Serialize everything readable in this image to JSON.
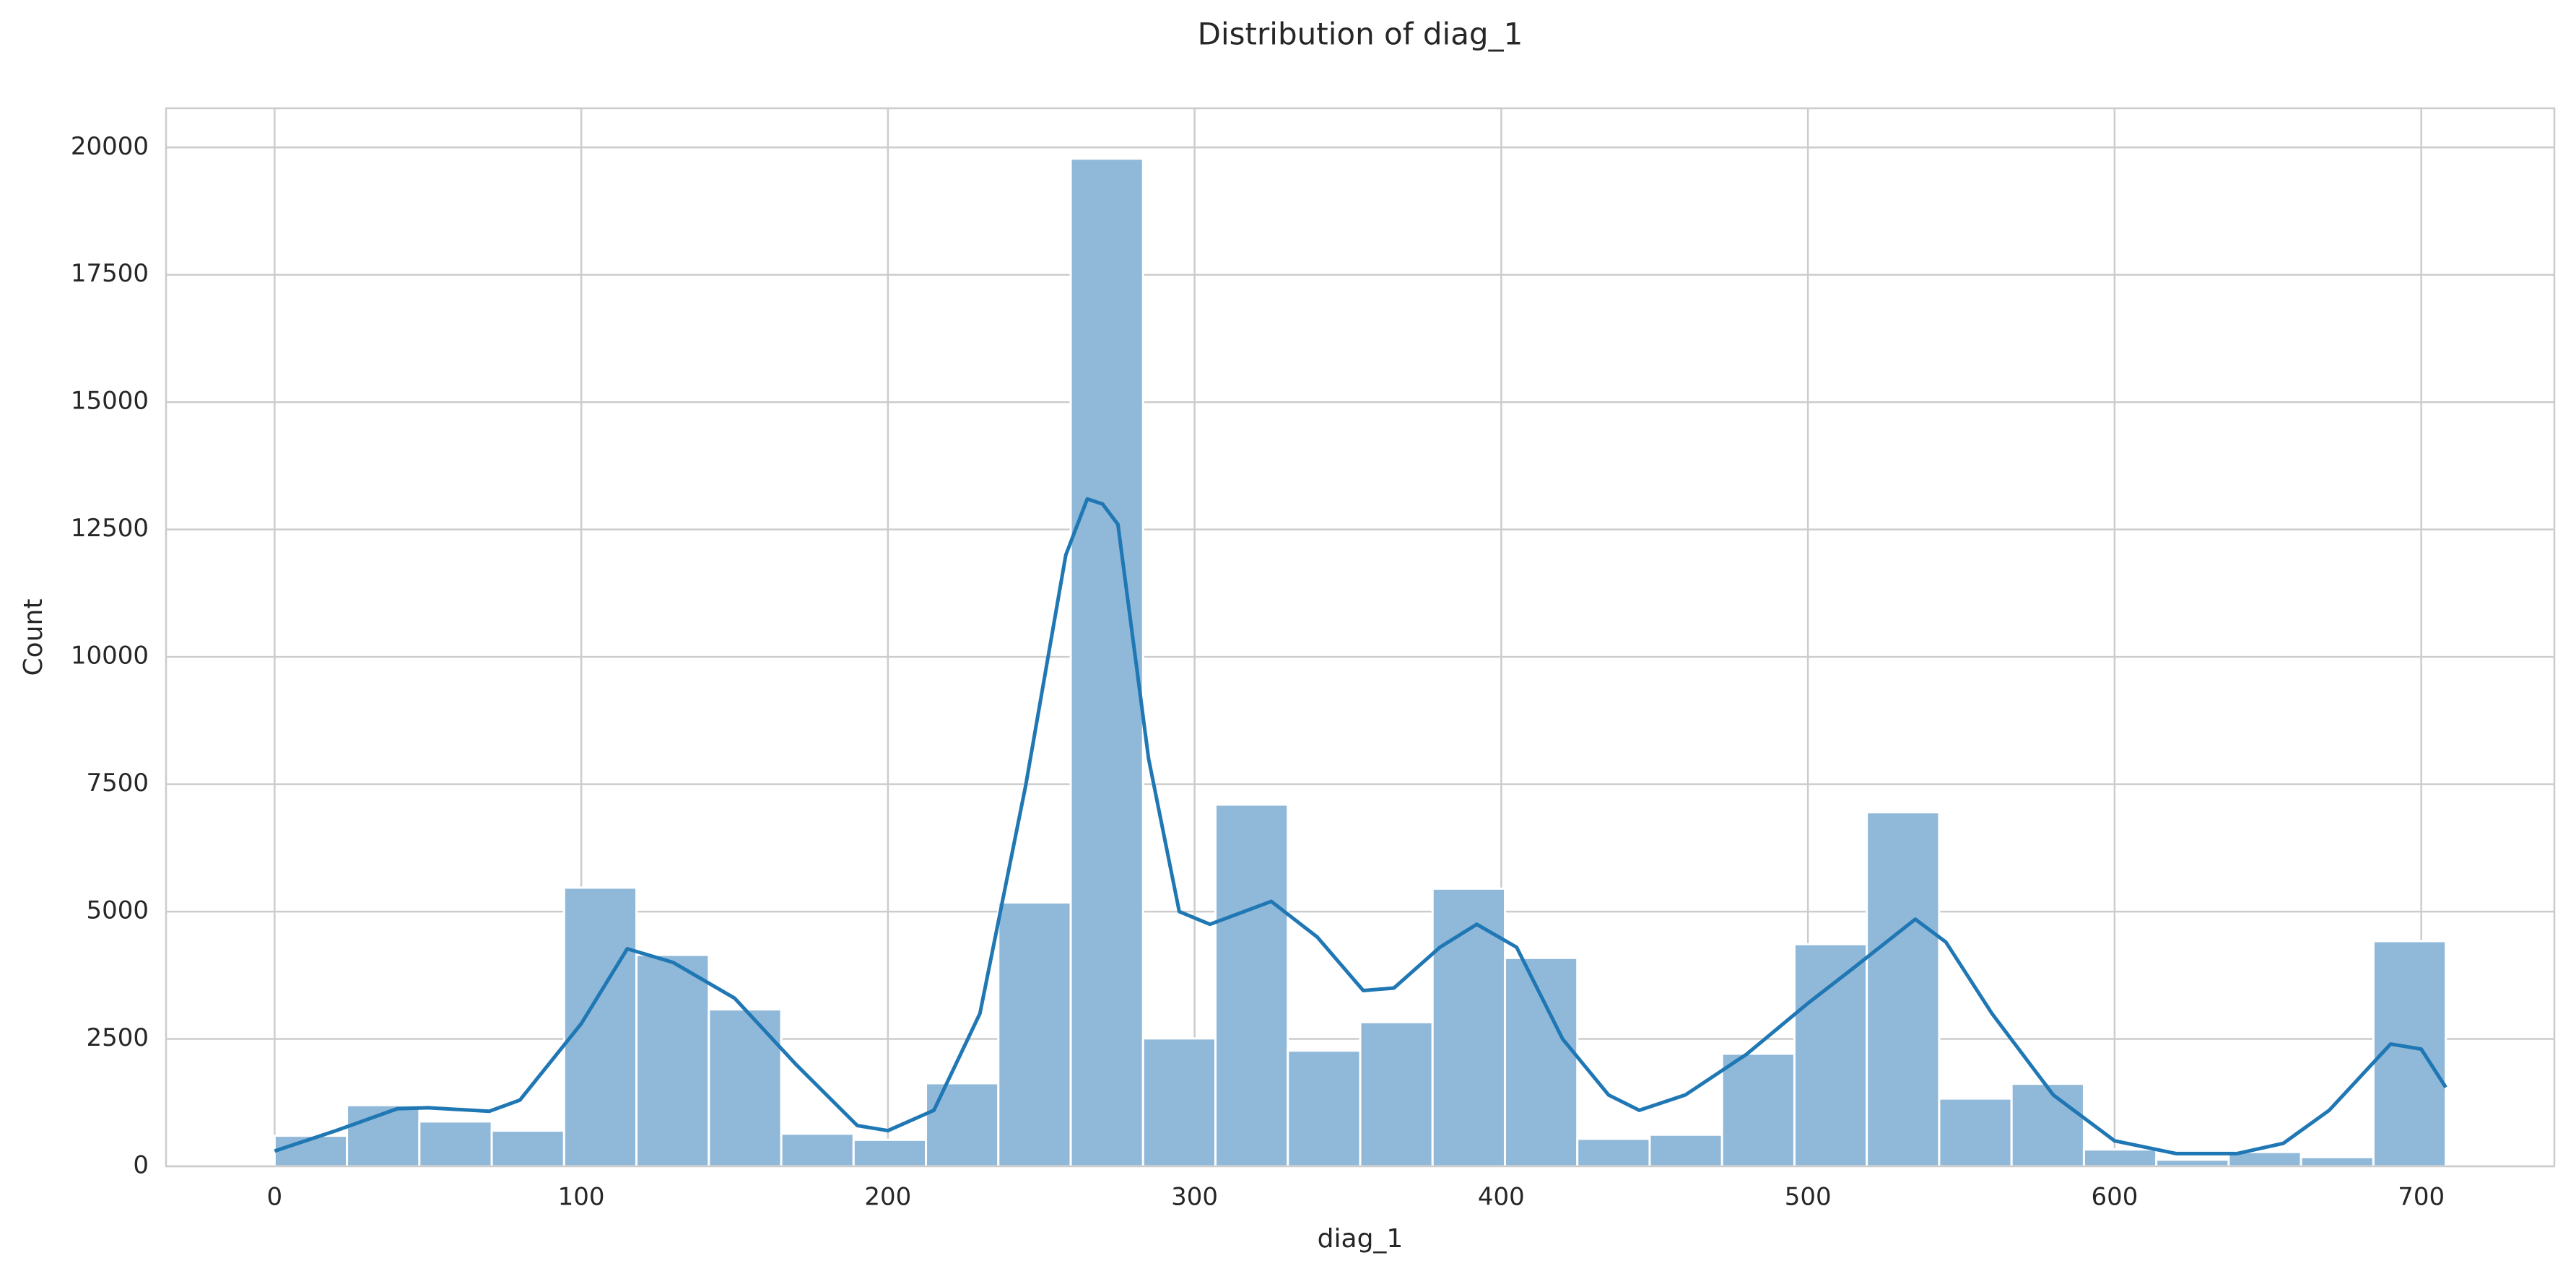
{
  "chart_data": {
    "type": "histogram",
    "title": "Distribution of diag_1",
    "xlabel": "diag_1",
    "ylabel": "Count",
    "bins": [
      0,
      23.6,
      47.2,
      70.8,
      94.4,
      118,
      141.6,
      165.2,
      188.8,
      212.4,
      236,
      259.6,
      283.2,
      306.8,
      330.4,
      354,
      377.6,
      401.2,
      424.8,
      448.4,
      472,
      495.6,
      519.2,
      542.8,
      566.4,
      590,
      613.6,
      637.2,
      660.8,
      684.4,
      708
    ],
    "values": [
      600,
      1200,
      880,
      700,
      5470,
      4150,
      3080,
      640,
      520,
      1630,
      5180,
      19780,
      2510,
      7100,
      2270,
      2830,
      5450,
      4090,
      540,
      620,
      2210,
      4360,
      6950,
      1330,
      1620,
      330,
      130,
      280,
      180,
      4420
    ],
    "color": "#8fb8d9",
    "kde": {
      "color": "#1f77b4",
      "x": [
        0,
        20,
        40,
        50,
        70,
        80,
        100,
        115,
        130,
        150,
        170,
        190,
        200,
        215,
        230,
        245,
        258,
        265,
        270,
        275,
        285,
        295,
        305,
        325,
        340,
        355,
        365,
        380,
        392,
        405,
        420,
        435,
        445,
        460,
        480,
        500,
        515,
        535,
        545,
        560,
        580,
        600,
        620,
        640,
        655,
        670,
        690,
        700,
        708
      ],
      "values": [
        300,
        700,
        1130,
        1150,
        1080,
        1300,
        2800,
        4270,
        4000,
        3300,
        2000,
        800,
        700,
        1100,
        3000,
        7500,
        12000,
        13100,
        13000,
        12600,
        8000,
        5000,
        4750,
        5200,
        4500,
        3450,
        3500,
        4300,
        4750,
        4300,
        2500,
        1400,
        1100,
        1400,
        2200,
        3200,
        3900,
        4850,
        4400,
        3000,
        1400,
        500,
        250,
        250,
        450,
        1100,
        2400,
        2300,
        1550
      ]
    },
    "xlim": [
      -35.4,
      743.4
    ],
    "ylim": [
      0,
      20769
    ],
    "xticks": [
      0,
      100,
      200,
      300,
      400,
      500,
      600,
      700
    ],
    "yticks": [
      0,
      2500,
      5000,
      7500,
      10000,
      12500,
      15000,
      17500,
      20000
    ],
    "grid": true
  }
}
